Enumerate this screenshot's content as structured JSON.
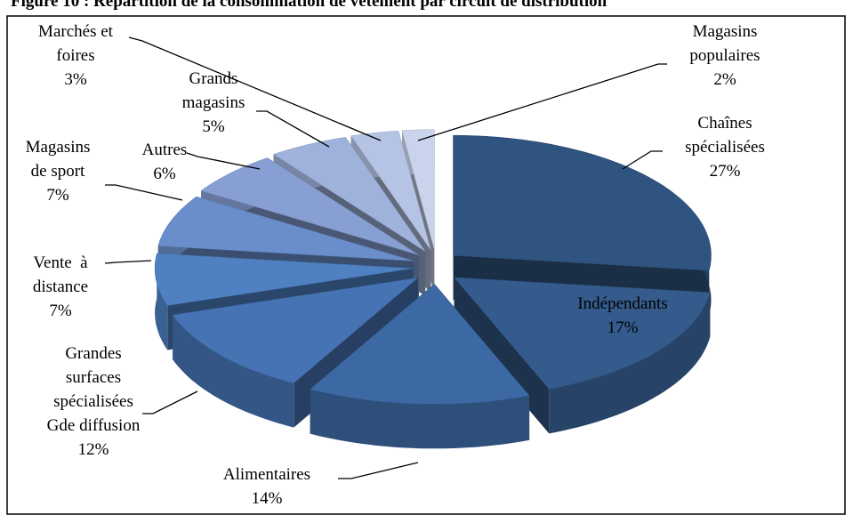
{
  "chart_data": {
    "type": "pie",
    "title": "Figure 10 : Répartition de la consommation de vêtement par circuit de distribution",
    "categories": [
      "Chaînes\nspécialisées",
      "Indépendants",
      "Alimentaires",
      "Grandes\nsurfaces\nspécialisées\nGde diffusion",
      "Vente  à\ndistance",
      "Magasins\nde sport",
      "Autres",
      "Grands\nmagasins",
      "Marchés et\nfoires",
      "Magasins\npopulaires"
    ],
    "values": [
      27,
      17,
      14,
      12,
      7,
      7,
      6,
      5,
      3,
      2
    ],
    "value_labels": [
      "27%",
      "17%",
      "14%",
      "12%",
      "7%",
      "7%",
      "6%",
      "5%",
      "3%",
      "2%"
    ],
    "colors": [
      "#2f5480",
      "#345b8b",
      "#3c69a3",
      "#4573b4",
      "#4f80c2",
      "#6a8ecb",
      "#879fd2",
      "#9eb2db",
      "#b5c4e4",
      "#c9d4ec"
    ]
  }
}
